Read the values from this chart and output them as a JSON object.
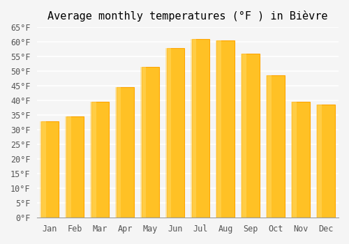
{
  "title": "Average monthly temperatures (°F ) in Bièvre",
  "months": [
    "Jan",
    "Feb",
    "Mar",
    "Apr",
    "May",
    "Jun",
    "Jul",
    "Aug",
    "Sep",
    "Oct",
    "Nov",
    "Dec"
  ],
  "values": [
    33,
    34.5,
    39.5,
    44.5,
    51.5,
    58,
    61,
    60.5,
    56,
    48.5,
    39.5,
    38.5
  ],
  "bar_color_face": "#FFC125",
  "bar_color_edge": "#FFA500",
  "ylim": [
    0,
    65
  ],
  "yticks": [
    0,
    5,
    10,
    15,
    20,
    25,
    30,
    35,
    40,
    45,
    50,
    55,
    60,
    65
  ],
  "ytick_labels": [
    "0°F",
    "5°F",
    "10°F",
    "15°F",
    "20°F",
    "25°F",
    "30°F",
    "35°F",
    "40°F",
    "45°F",
    "50°F",
    "55°F",
    "60°F",
    "65°F"
  ],
  "background_color": "#f5f5f5",
  "grid_color": "#ffffff",
  "title_fontsize": 11,
  "tick_fontsize": 8.5,
  "font_family": "monospace"
}
